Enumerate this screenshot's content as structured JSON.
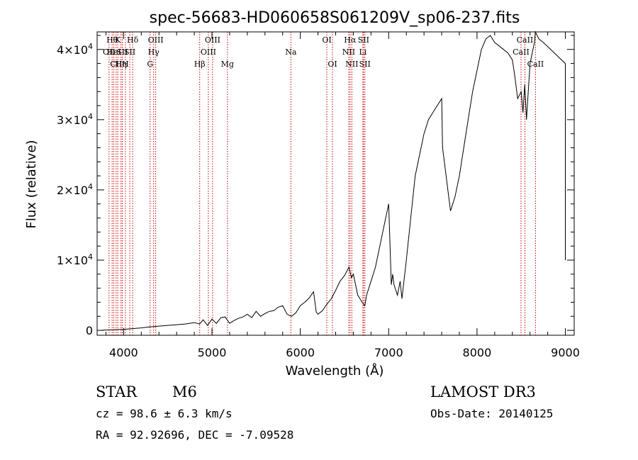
{
  "chart_data": {
    "type": "line",
    "title": "spec-56683-HD060658S061209V_sp06-237.fits",
    "xlabel": "Wavelength (Å)",
    "ylabel": "Flux (relative)",
    "xlim": [
      3700,
      9100
    ],
    "ylim": [
      -700,
      42500
    ],
    "xticks": [
      4000,
      5000,
      6000,
      7000,
      8000,
      9000
    ],
    "xtick_labels": [
      "4000",
      "5000",
      "6000",
      "7000",
      "8000",
      "9000"
    ],
    "yticks": [
      0,
      10000,
      20000,
      30000,
      40000
    ],
    "ytick_labels": [
      {
        "mant": "0",
        "exp": ""
      },
      {
        "mant": "1×10",
        "exp": "4"
      },
      {
        "mant": "2×10",
        "exp": "4"
      },
      {
        "mant": "3×10",
        "exp": "4"
      },
      {
        "mant": "4×10",
        "exp": "4"
      }
    ],
    "series": [
      {
        "name": "flux",
        "x": [
          3740,
          3800,
          3900,
          4000,
          4100,
          4200,
          4300,
          4400,
          4500,
          4600,
          4700,
          4800,
          4860,
          4900,
          4950,
          5000,
          5050,
          5100,
          5150,
          5200,
          5250,
          5300,
          5350,
          5400,
          5450,
          5500,
          5550,
          5600,
          5650,
          5700,
          5750,
          5800,
          5850,
          5900,
          5950,
          6000,
          6050,
          6100,
          6150,
          6180,
          6200,
          6250,
          6300,
          6350,
          6400,
          6450,
          6500,
          6550,
          6580,
          6600,
          6650,
          6700,
          6730,
          6750,
          6800,
          6850,
          6900,
          6950,
          7000,
          7030,
          7045,
          7060,
          7100,
          7130,
          7150,
          7200,
          7250,
          7300,
          7350,
          7400,
          7450,
          7500,
          7550,
          7600,
          7610,
          7630,
          7650,
          7680,
          7700,
          7750,
          7800,
          7850,
          7900,
          7950,
          8000,
          8050,
          8100,
          8150,
          8200,
          8250,
          8300,
          8350,
          8400,
          8430,
          8460,
          8500,
          8520,
          8540,
          8560,
          8600,
          8650,
          8660,
          8680,
          8700,
          8750,
          9000,
          9000
        ],
        "y": [
          0,
          50,
          100,
          150,
          250,
          350,
          500,
          600,
          700,
          800,
          900,
          1100,
          900,
          1500,
          700,
          1600,
          1000,
          1800,
          1900,
          1000,
          1400,
          1700,
          1900,
          2300,
          1800,
          2700,
          2000,
          2400,
          2700,
          2800,
          3300,
          3500,
          2300,
          2000,
          2500,
          3500,
          4000,
          4600,
          5500,
          2600,
          2300,
          2800,
          3700,
          4500,
          5700,
          7000,
          7800,
          9000,
          7500,
          8000,
          5000,
          4000,
          3500,
          5000,
          7000,
          9000,
          12000,
          15000,
          18000,
          6500,
          8000,
          6500,
          5000,
          7000,
          4500,
          10000,
          16000,
          22000,
          25000,
          28000,
          30000,
          31000,
          32000,
          33000,
          26000,
          24000,
          22000,
          19000,
          17000,
          19000,
          22000,
          26000,
          30000,
          34000,
          37000,
          40000,
          41500,
          42000,
          41000,
          40500,
          40000,
          39500,
          38500,
          36000,
          33000,
          34000,
          31000,
          35000,
          30000,
          38000,
          41000,
          42500,
          42000,
          41500,
          41000,
          38000,
          10000
        ]
      }
    ],
    "lines": [
      {
        "wave": 3835,
        "label": "OΙΙ",
        "row": 2
      },
      {
        "wave": 3870,
        "label": "Hθ",
        "row": 1
      },
      {
        "wave": 3889,
        "label": "HeΙ",
        "row": 2
      },
      {
        "wave": 3915,
        "label": "CΙΙ",
        "row": 3
      },
      {
        "wave": 3934,
        "label": "K",
        "row": 1
      },
      {
        "wave": 3970,
        "label": "Hη",
        "row": 3
      },
      {
        "wave": 3985,
        "label": "SΙΙ",
        "row": 2
      },
      {
        "wave": 4020,
        "label": "H",
        "row": 3
      },
      {
        "wave": 4070,
        "label": "SΙΙ",
        "row": 2
      },
      {
        "wave": 4102,
        "label": "Hδ",
        "row": 1
      },
      {
        "wave": 4300,
        "label": "G",
        "row": 3
      },
      {
        "wave": 4340,
        "label": "Hγ",
        "row": 2
      },
      {
        "wave": 4363,
        "label": "OΙΙΙ",
        "row": 1
      },
      {
        "wave": 4861,
        "label": "Hβ",
        "row": 3
      },
      {
        "wave": 4959,
        "label": "OΙΙΙ",
        "row": 2
      },
      {
        "wave": 5007,
        "label": "OΙΙΙ",
        "row": 1
      },
      {
        "wave": 5175,
        "label": "Mg",
        "row": 3
      },
      {
        "wave": 5893,
        "label": "Na",
        "row": 2
      },
      {
        "wave": 6300,
        "label": "OΙ",
        "row": 1
      },
      {
        "wave": 6364,
        "label": "OΙ",
        "row": 3
      },
      {
        "wave": 6548,
        "label": "NΙΙ",
        "row": 2
      },
      {
        "wave": 6563,
        "label": "Hα",
        "row": 1
      },
      {
        "wave": 6583,
        "label": "NΙΙ",
        "row": 3
      },
      {
        "wave": 6708,
        "label": "Li",
        "row": 2
      },
      {
        "wave": 6716,
        "label": "SΙΙ",
        "row": 1
      },
      {
        "wave": 6731,
        "label": "SΙΙ",
        "row": 3
      },
      {
        "wave": 8498,
        "label": "CaΙΙ",
        "row": 2
      },
      {
        "wave": 8542,
        "label": "CaΙΙ",
        "row": 1
      },
      {
        "wave": 8662,
        "label": "CaΙΙ",
        "row": 3
      }
    ]
  },
  "info": {
    "class": "STAR",
    "subclass": "M6",
    "survey": "LAMOST DR3",
    "cz": "cz = 98.6 ± 6.3 km/s",
    "coords": "RA =  92.92696, DEC =  -7.09528",
    "obs_date": "Obs-Date: 20140125"
  },
  "colors": {
    "axis": "#000000",
    "spectrum": "#000000",
    "line_marker": "#cc0000"
  }
}
